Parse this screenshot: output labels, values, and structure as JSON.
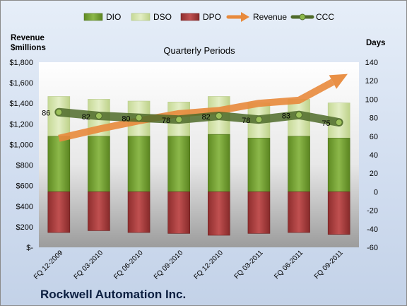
{
  "chart_data": {
    "type": "bar",
    "title": "Quarterly Periods",
    "company": "Rockwell Automation Inc.",
    "left_axis_label_line1": "Revenue",
    "left_axis_label_line2": "$millions",
    "right_axis_label": "Days",
    "left_ticks": [
      "$-",
      "$200",
      "$400",
      "$600",
      "$800",
      "$1,000",
      "$1,200",
      "$1,400",
      "$1,600",
      "$1,800"
    ],
    "right_ticks": [
      "-60",
      "-40",
      "-20",
      "0",
      "20",
      "40",
      "60",
      "80",
      "100",
      "120",
      "140"
    ],
    "left_ylim": [
      0,
      1800
    ],
    "right_ylim": [
      -60,
      140
    ],
    "categories": [
      "FQ 12-2009",
      "FQ 03-2010",
      "FQ 06-2010",
      "FQ 09-2010",
      "FQ 12-2010",
      "FQ 03-2011",
      "FQ 06-2011",
      "FQ 09-2011"
    ],
    "legend_position": "top",
    "series": [
      {
        "name": "DIO",
        "axis": "days",
        "color": "#6f9a2a",
        "values": [
          60,
          60,
          60,
          60,
          62,
          58,
          60,
          58
        ]
      },
      {
        "name": "DSO",
        "axis": "days",
        "color": "#d4e3a6",
        "values": [
          43,
          40,
          38,
          37,
          41,
          38,
          40,
          38
        ]
      },
      {
        "name": "DPO",
        "axis": "days",
        "color": "#a33a3a",
        "values": [
          -44,
          -42,
          -44,
          -45,
          -47,
          -45,
          -44,
          -46
        ]
      },
      {
        "name": "Revenue",
        "axis": "revenue",
        "color": "#e88a3c",
        "values": [
          1060,
          1150,
          1230,
          1300,
          1330,
          1400,
          1430,
          1640
        ]
      },
      {
        "name": "CCC",
        "axis": "days",
        "color": "#4f6b2a",
        "values": [
          86,
          82,
          80,
          78,
          82,
          78,
          83,
          75
        ]
      }
    ],
    "ccc_labels": [
      "86",
      "82",
      "80",
      "78",
      "82",
      "78",
      "83",
      "75"
    ]
  }
}
